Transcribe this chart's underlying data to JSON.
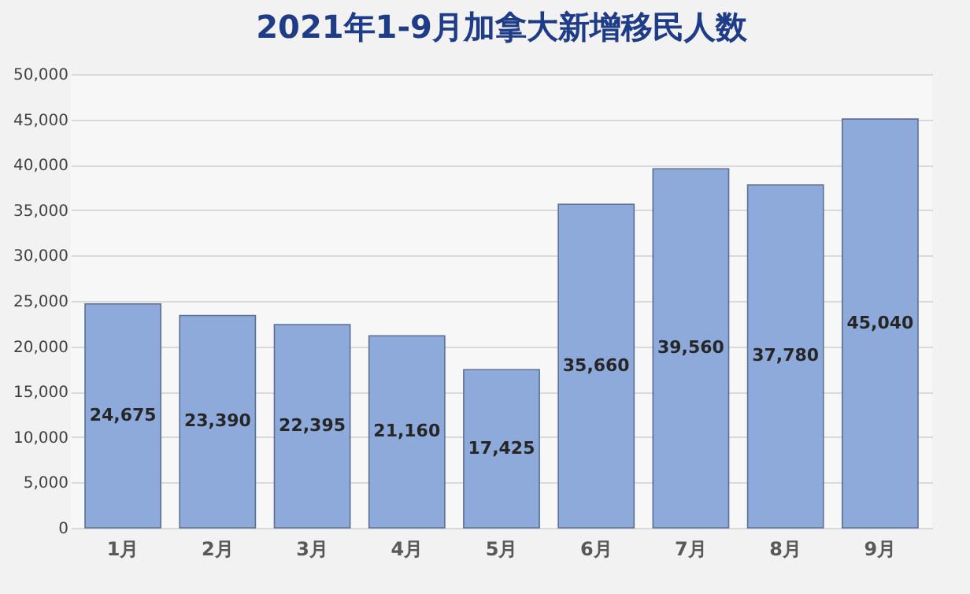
{
  "chart_data": {
    "type": "bar",
    "title": "2021年1-9月加拿大新增移民人数",
    "categories": [
      "1月",
      "2月",
      "3月",
      "4月",
      "5月",
      "6月",
      "7月",
      "8月",
      "9月"
    ],
    "values": [
      24675,
      23390,
      22395,
      21160,
      17425,
      35660,
      39560,
      37780,
      45040
    ],
    "color": "#8eaadb",
    "value_labels": [
      "24,675",
      "23,390",
      "22,395",
      "21,160",
      "17,425",
      "35,660",
      "39,560",
      "37,780",
      "45,040"
    ],
    "grid": "y",
    "ylim": [
      0,
      50000
    ],
    "yticks": [
      {
        "value": 0,
        "label": "0"
      },
      {
        "value": 5000,
        "label": "5,000"
      },
      {
        "value": 10000,
        "label": "10,000"
      },
      {
        "value": 15000,
        "label": "15,000"
      },
      {
        "value": 20000,
        "label": "20,000"
      },
      {
        "value": 25000,
        "label": "25,000"
      },
      {
        "value": 30000,
        "label": "30,000"
      },
      {
        "value": 35000,
        "label": "35,000"
      },
      {
        "value": 40000,
        "label": "40,000"
      },
      {
        "value": 45000,
        "label": "45,000"
      },
      {
        "value": 50000,
        "label": "50,000"
      }
    ]
  }
}
